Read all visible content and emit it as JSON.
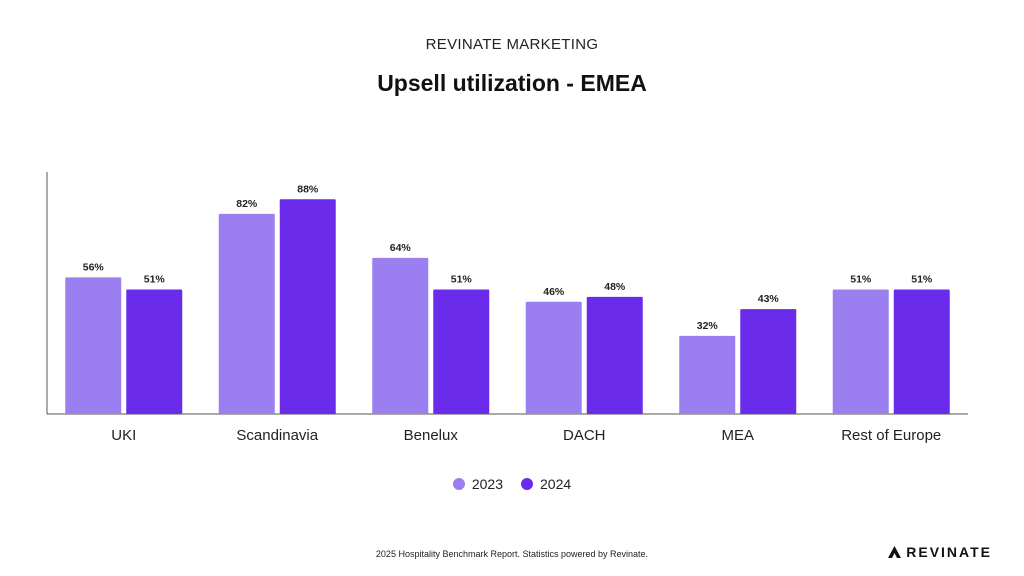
{
  "header": {
    "eyebrow": "REVINATE MARKETING",
    "title": "Upsell utilization - EMEA"
  },
  "chart_data": {
    "type": "bar",
    "title": "Upsell utilization - EMEA",
    "categories": [
      "UKI",
      "Scandinavia",
      "Benelux",
      "DACH",
      "MEA",
      "Rest of Europe"
    ],
    "series": [
      {
        "name": "2023",
        "values": [
          56,
          82,
          64,
          46,
          32,
          51
        ],
        "color": "#9b7ff0"
      },
      {
        "name": "2024",
        "values": [
          51,
          88,
          51,
          48,
          43,
          51
        ],
        "color": "#6a2bea"
      }
    ],
    "data_labels": [
      [
        "56%",
        "82%",
        "64%",
        "46%",
        "32%",
        "51%"
      ],
      [
        "51%",
        "88%",
        "51%",
        "48%",
        "43%",
        "51%"
      ]
    ],
    "ylim": [
      0,
      100
    ],
    "xlabel": "",
    "ylabel": "",
    "grid": false,
    "legend_position": "bottom-center"
  },
  "legend": [
    {
      "label": "2023",
      "color": "#9b7ff0"
    },
    {
      "label": "2024",
      "color": "#6a2bea"
    }
  ],
  "footer": {
    "note": "2025 Hospitality Benchmark Report. Statistics powered by Revinate.",
    "brand": "REVINATE",
    "brand_icon": "revinate-logo-icon"
  }
}
